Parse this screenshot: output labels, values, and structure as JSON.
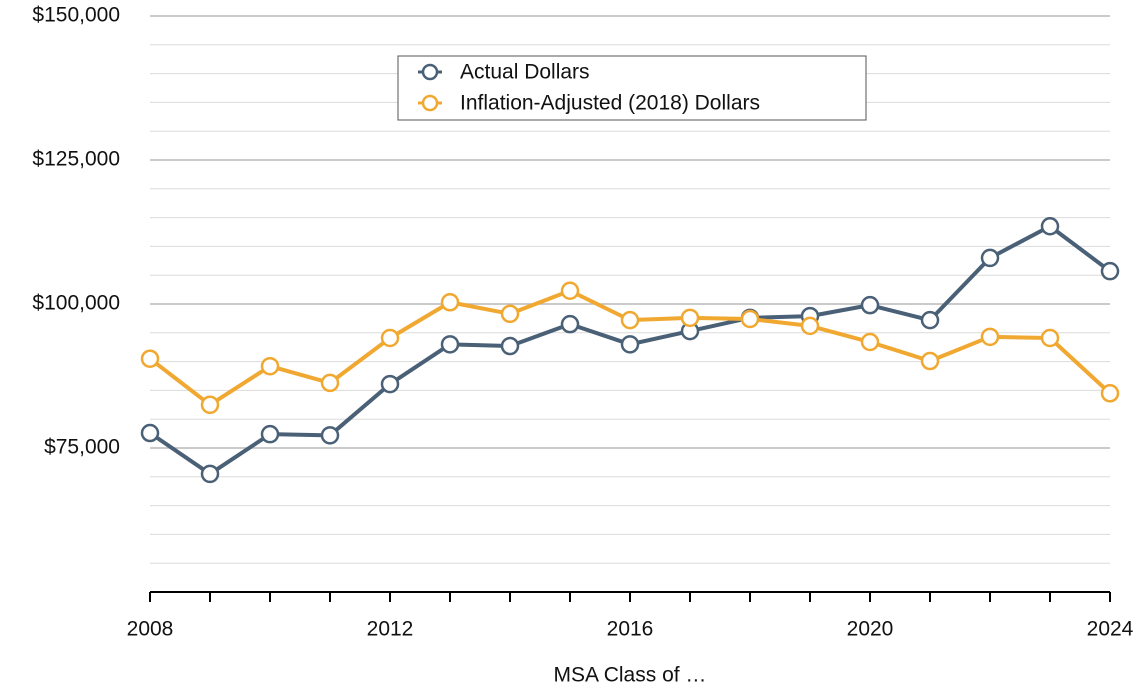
{
  "chart_data": {
    "type": "line",
    "x": [
      2008,
      2009,
      2010,
      2011,
      2012,
      2013,
      2014,
      2015,
      2016,
      2017,
      2018,
      2019,
      2020,
      2021,
      2022,
      2023,
      2024
    ],
    "series": [
      {
        "name": "Actual Dollars",
        "color": "#4a6076",
        "values": [
          77600,
          70500,
          77400,
          77200,
          86100,
          93000,
          92700,
          96500,
          93000,
          95300,
          97600,
          97900,
          99800,
          97200,
          108000,
          113500,
          105700
        ]
      },
      {
        "name": "Inflation-Adjusted (2018) Dollars",
        "color": "#f0a830",
        "values": [
          90500,
          82500,
          89200,
          86300,
          94100,
          100300,
          98300,
          102300,
          97200,
          97600,
          97400,
          96200,
          93400,
          90100,
          94300,
          94100,
          84500
        ]
      }
    ],
    "xlim": [
      2008,
      2024
    ],
    "xticks": [
      2008,
      2012,
      2016,
      2020,
      2024
    ],
    "ylim": [
      50000,
      150000
    ],
    "yticks": [
      {
        "value": 75000,
        "label": "$75,000"
      },
      {
        "value": 100000,
        "label": "$100,000"
      },
      {
        "value": 125000,
        "label": "$125,000"
      },
      {
        "value": 150000,
        "label": "$150,000"
      }
    ],
    "minor_yticks": [
      55000,
      60000,
      65000,
      70000,
      80000,
      85000,
      90000,
      95000,
      105000,
      110000,
      115000,
      120000,
      130000,
      135000,
      140000,
      145000
    ],
    "xlabel": "MSA Class of …",
    "grid": true,
    "legend": "top-center"
  }
}
